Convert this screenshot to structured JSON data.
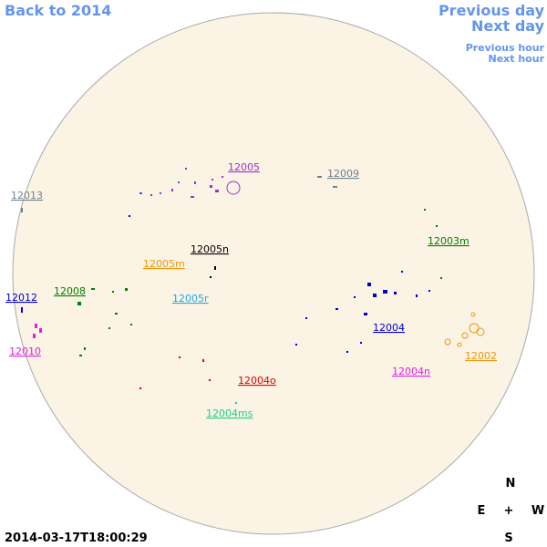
{
  "navigation": {
    "back": "Back to 2014",
    "previous_day": "Previous day",
    "next_day": "Next day",
    "previous_hour": "Previous hour",
    "next_hour": "Next hour"
  },
  "regions": [
    {
      "label": "12005",
      "color": "#9933cc"
    },
    {
      "label": "12009",
      "color": "#708090"
    },
    {
      "label": "12013",
      "color": "#708090"
    },
    {
      "label": "12003m",
      "color": "#008000"
    },
    {
      "label": "12005n",
      "color": "#000000"
    },
    {
      "label": "12005m",
      "color": "#f0960a"
    },
    {
      "label": "12008",
      "color": "#008000"
    },
    {
      "label": "12012",
      "color": "#0000cc"
    },
    {
      "label": "12005r",
      "color": "#1eaae0"
    },
    {
      "label": "12004",
      "color": "#0000cc"
    },
    {
      "label": "12010",
      "color": "#e020e0"
    },
    {
      "label": "12002",
      "color": "#f0960a"
    },
    {
      "label": "12004n",
      "color": "#e020e0"
    },
    {
      "label": "12004o",
      "color": "#e00000"
    },
    {
      "label": "12004ms",
      "color": "#22cc88"
    }
  ],
  "compass": {
    "north": "N",
    "east": "E",
    "center": "+",
    "west": "W",
    "south": "S"
  },
  "timestamp": "2014-03-17T18:00:29"
}
